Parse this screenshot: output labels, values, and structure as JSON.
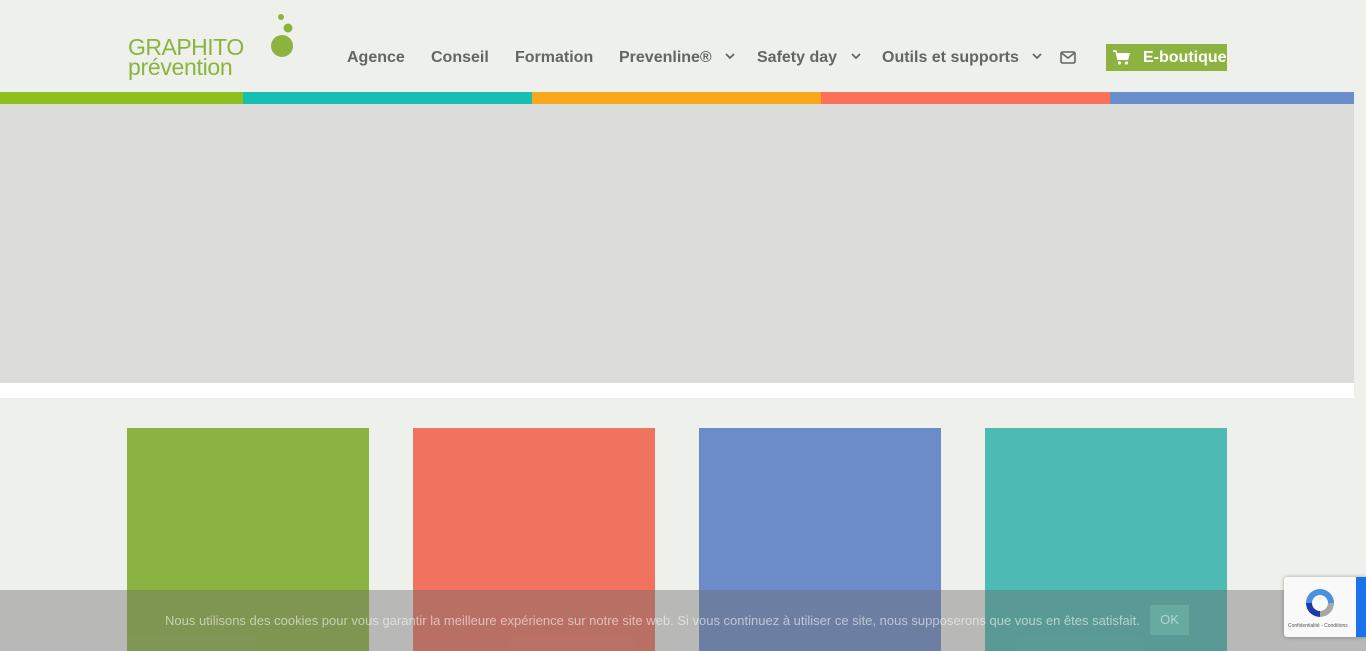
{
  "logo": {
    "line1": "GRAPHITO",
    "line2": "prévention",
    "color": "#8cb33f"
  },
  "nav": {
    "items": [
      {
        "label": "Agence",
        "dropdown": false
      },
      {
        "label": "Conseil",
        "dropdown": false
      },
      {
        "label": "Formation",
        "dropdown": false
      },
      {
        "label": "Prevenline®",
        "dropdown": true
      },
      {
        "label": "Safety day",
        "dropdown": true
      },
      {
        "label": "Outils et supports",
        "dropdown": true
      }
    ],
    "mail_icon": "envelope-icon",
    "shop": {
      "label": "E-boutique",
      "icon": "shopping-cart-icon"
    }
  },
  "color_bar": [
    "#8fbe1f",
    "#16bfb1",
    "#f8a91b",
    "#fd7159",
    "#6a8dcb"
  ],
  "tiles": [
    "#8cb341",
    "#ef735e",
    "#6b8cc9",
    "#4dbbb4"
  ],
  "cookie": {
    "text": "Nous utilisons des cookies pour vous garantir la meilleure expérience sur notre site web. Si vous continuez à utiliser ce site, nous supposerons que vous en êtes satisfait.",
    "ok_label": "OK"
  },
  "recaptcha": {
    "links": "Confidentialité - Conditions"
  }
}
